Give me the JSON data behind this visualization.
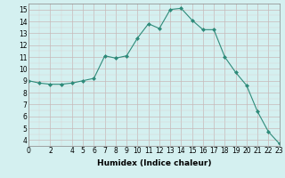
{
  "x": [
    0,
    1,
    2,
    3,
    4,
    5,
    6,
    7,
    8,
    9,
    10,
    11,
    12,
    13,
    14,
    15,
    16,
    17,
    18,
    19,
    20,
    21,
    22,
    23
  ],
  "y": [
    9.0,
    8.8,
    8.7,
    8.7,
    8.8,
    9.0,
    9.2,
    11.1,
    10.9,
    11.1,
    12.6,
    13.8,
    13.4,
    15.0,
    15.1,
    14.1,
    13.3,
    13.3,
    11.0,
    9.7,
    8.6,
    6.4,
    4.7,
    3.7
  ],
  "line_color": "#2e8b7a",
  "marker": "D",
  "marker_size": 2.0,
  "bg_color": "#d4f0f0",
  "grid_major_color": "#c8b8b8",
  "grid_minor_color": "#ddd0d0",
  "xlabel": "Humidex (Indice chaleur)",
  "xlim": [
    0,
    23
  ],
  "ylim": [
    3.5,
    15.5
  ],
  "yticks": [
    4,
    5,
    6,
    7,
    8,
    9,
    10,
    11,
    12,
    13,
    14,
    15
  ],
  "xticks": [
    0,
    2,
    4,
    5,
    6,
    7,
    8,
    9,
    10,
    11,
    12,
    13,
    14,
    15,
    16,
    17,
    18,
    19,
    20,
    21,
    22,
    23
  ],
  "xlabel_fontsize": 6.5,
  "tick_fontsize": 5.5
}
